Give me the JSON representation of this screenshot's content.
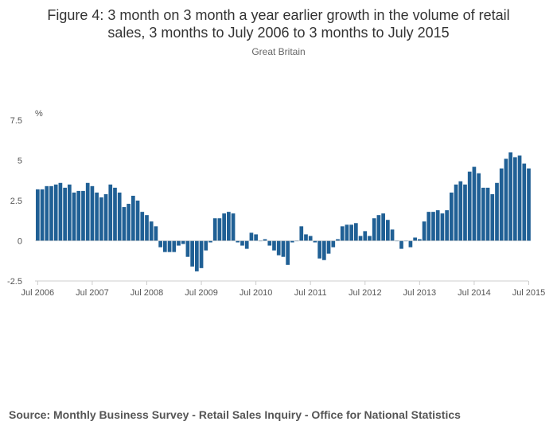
{
  "chart": {
    "title_line1": "Figure 4: 3 month on 3 month a year earlier growth in the volume of retail",
    "title_line2": "sales, 3 months to July 2006 to 3 months to July 2015",
    "subtitle": "Great Britain",
    "source": "Source: Monthly Business Survey - Retail Sales Inquiry - Office for National Statistics"
  },
  "colors": {
    "bar": "#206095",
    "zero_line": "#bfbfbf",
    "text": "#333333"
  },
  "chart_data": {
    "type": "bar",
    "title": "Figure 4: 3 month on 3 month a year earlier growth in the volume of retail sales, 3 months to July 2006 to 3 months to July 2015",
    "subtitle": "Great Britain",
    "ylabel": "%",
    "ylim": [
      -2.5,
      7.5
    ],
    "yticks": [
      "-2.5",
      "0",
      "2.5",
      "5",
      "7.5"
    ],
    "xticks": [
      "Jul 2006",
      "Jul 2007",
      "Jul 2008",
      "Jul 2009",
      "Jul 2010",
      "Jul 2011",
      "Jul 2012",
      "Jul 2013",
      "Jul 2014",
      "Jul 2015"
    ],
    "grid": false,
    "categories": [
      "Jul 2006",
      "Aug 2006",
      "Sep 2006",
      "Oct 2006",
      "Nov 2006",
      "Dec 2006",
      "Jan 2007",
      "Feb 2007",
      "Mar 2007",
      "Apr 2007",
      "May 2007",
      "Jun 2007",
      "Jul 2007",
      "Aug 2007",
      "Sep 2007",
      "Oct 2007",
      "Nov 2007",
      "Dec 2007",
      "Jan 2008",
      "Feb 2008",
      "Mar 2008",
      "Apr 2008",
      "May 2008",
      "Jun 2008",
      "Jul 2008",
      "Aug 2008",
      "Sep 2008",
      "Oct 2008",
      "Nov 2008",
      "Dec 2008",
      "Jan 2009",
      "Feb 2009",
      "Mar 2009",
      "Apr 2009",
      "May 2009",
      "Jun 2009",
      "Jul 2009",
      "Aug 2009",
      "Sep 2009",
      "Oct 2009",
      "Nov 2009",
      "Dec 2009",
      "Jan 2010",
      "Feb 2010",
      "Mar 2010",
      "Apr 2010",
      "May 2010",
      "Jun 2010",
      "Jul 2010",
      "Aug 2010",
      "Sep 2010",
      "Oct 2010",
      "Nov 2010",
      "Dec 2010",
      "Jan 2011",
      "Feb 2011",
      "Mar 2011",
      "Apr 2011",
      "May 2011",
      "Jun 2011",
      "Jul 2011",
      "Aug 2011",
      "Sep 2011",
      "Oct 2011",
      "Nov 2011",
      "Dec 2011",
      "Jan 2012",
      "Feb 2012",
      "Mar 2012",
      "Apr 2012",
      "May 2012",
      "Jun 2012",
      "Jul 2012",
      "Aug 2012",
      "Sep 2012",
      "Oct 2012",
      "Nov 2012",
      "Dec 2012",
      "Jan 2013",
      "Feb 2013",
      "Mar 2013",
      "Apr 2013",
      "May 2013",
      "Jun 2013",
      "Jul 2013",
      "Aug 2013",
      "Sep 2013",
      "Oct 2013",
      "Nov 2013",
      "Dec 2013",
      "Jan 2014",
      "Feb 2014",
      "Mar 2014",
      "Apr 2014",
      "May 2014",
      "Jun 2014",
      "Jul 2014",
      "Aug 2014",
      "Sep 2014",
      "Oct 2014",
      "Nov 2014",
      "Dec 2014",
      "Jan 2015",
      "Feb 2015",
      "Mar 2015",
      "Apr 2015",
      "May 2015",
      "Jun 2015",
      "Jul 2015"
    ],
    "values": [
      3.2,
      3.2,
      3.4,
      3.4,
      3.5,
      3.6,
      3.3,
      3.5,
      3.0,
      3.1,
      3.1,
      3.6,
      3.4,
      3.0,
      2.7,
      2.9,
      3.5,
      3.3,
      3.0,
      2.1,
      2.3,
      2.8,
      2.5,
      1.8,
      1.6,
      1.2,
      0.9,
      -0.4,
      -0.7,
      -0.7,
      -0.7,
      -0.3,
      -0.2,
      -1.0,
      -1.6,
      -1.9,
      -1.7,
      -0.6,
      -0.1,
      1.4,
      1.4,
      1.7,
      1.8,
      1.7,
      -0.1,
      -0.3,
      -0.5,
      0.5,
      0.4,
      0.0,
      0.1,
      -0.3,
      -0.6,
      -0.9,
      -1.0,
      -1.5,
      -0.1,
      0.0,
      0.9,
      0.4,
      0.3,
      -0.1,
      -1.1,
      -1.2,
      -0.8,
      -0.4,
      0.1,
      0.9,
      1.0,
      1.0,
      1.1,
      0.3,
      0.6,
      0.3,
      1.4,
      1.6,
      1.7,
      1.3,
      0.7,
      0.0,
      -0.5,
      0.0,
      -0.4,
      0.2,
      0.1,
      1.2,
      1.8,
      1.8,
      1.9,
      1.7,
      1.9,
      3.0,
      3.5,
      3.7,
      3.5,
      4.3,
      4.6,
      4.2,
      3.3,
      3.3,
      2.9,
      3.6,
      4.5,
      5.1,
      5.5,
      5.2,
      5.3,
      4.8,
      4.5
    ]
  }
}
